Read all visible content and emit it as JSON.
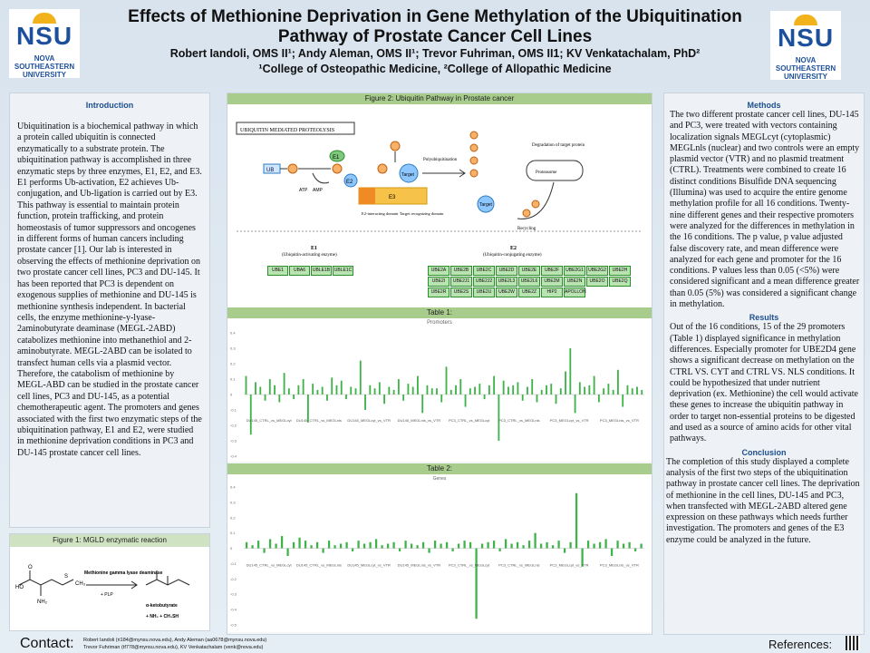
{
  "header": {
    "title": "Effects of Methionine Deprivation in Gene Methylation of the Ubiquitination Pathway of Prostate Cancer Cell Lines",
    "authors": "Robert Iandoli, OMS II¹; Andy Aleman, OMS II¹; Trevor Fuhriman, OMS II1; KV Venkatachalam, PhD²",
    "affiliations": "¹College of Osteopathic Medicine, ²College of Allopathic Medicine",
    "logo_text": "NSU",
    "logo_subtext": "NOVA SOUTHEASTERN UNIVERSITY"
  },
  "intro": {
    "heading": "Introduction",
    "text": "Ubiquitination is a biochemical pathway in which a protein called ubiquitin is connected enzymatically to a substrate protein. The ubiquitination pathway is accomplished in three enzymatic steps by three enzymes, E1, E2, and E3. E1 performs Ub-activation, E2 achieves Ub-conjugation, and Ub-ligation is carried out by E3. This pathway is essential to maintain protein function, protein trafficking, and protein homeostasis of tumor suppressors and oncogenes in different forms of human cancers including prostate cancer [1]. Our lab is interested in observing the effects of methionine deprivation on two prostate cancer cell lines, PC3 and DU-145. It has been reported that PC3 is dependent on exogenous supplies of methionine and DU-145 is methionine synthesis independent. In bacterial cells, the enzyme methionine-y-lyase-2aminobutyrate deaminase (MEGL-2ABD) catabolizes methionine into methanethiol and 2-aminobutyrate. MEGL-2ABD can be isolated to transfect human cells via a plasmid vector. Therefore, the catabolism of methionine by MEGL-ABD can be studied in the prostate cancer cell lines, PC3 and DU-145, as a potential chemotherapeutic agent. The promoters and genes associated with the first two enzymatic steps of the ubiquitination pathway, E1 and E2, were studied in methionine deprivation conditions in PC3 and DU-145 prostate cancer cell lines."
  },
  "figure1": {
    "caption": "Figure 1: MGLD enzymatic reaction",
    "enzyme_label": "Methionine gamma lyase deaminase",
    "cofactor": "+ PLP",
    "product1": "α-ketobutyrate",
    "product2": "+ NH₃ + CH₃SH"
  },
  "figure2": {
    "caption": "Figure 2: Ubiquitin Pathway in Prostate cancer",
    "diagram_title": "UBIQUITIN MEDIATED PROTEOLYSIS",
    "labels": {
      "ub": "UB",
      "ub_small": "Ub",
      "e1": "E1",
      "e2": "E2",
      "e3": "E3",
      "atp": "ATP",
      "amp": "AMP",
      "target": "Target",
      "poly": "Polyubiquitination",
      "degradation": "Degradation of target protein",
      "proteasome": "Proteasome",
      "recycling": "Recycling",
      "e2_domain": "E2-interacting domain",
      "target_domain": "Target recognizing domain"
    },
    "e1_title": "E1",
    "e1_sub": "(Ubiquitin-activating enzyme)",
    "e2_title": "E2",
    "e2_sub": "(Ubiquitin-conjugating enzyme)",
    "e1_genes": [
      "UBE1",
      "UBA6",
      "UBLE1B",
      "UBLE1C"
    ],
    "e2_genes": [
      "UBE2A",
      "UBE2B",
      "UBE2C",
      "UBE2D",
      "UBE2E",
      "UBE2F",
      "UBE2G1",
      "UBE2G2",
      "UBE2H",
      "UBE2I",
      "UBE2J1",
      "UBE2J2",
      "UBE2L3",
      "UBE2L6",
      "UBE2M",
      "UBE2N",
      "UBE2O",
      "UBE2Q",
      "UBE2R",
      "UBE2S",
      "UBE2U",
      "UBE2W",
      "UBE2Z",
      "HIP2",
      "APOLLON"
    ]
  },
  "table1": {
    "caption": "Table 1:",
    "chart_title": "Promoters"
  },
  "table2": {
    "caption": "Table 2:",
    "chart_title": "Genes"
  },
  "chart_data": [
    {
      "type": "bar",
      "title": "Promoters",
      "ylim": [
        -0.4,
        0.4
      ],
      "ytick_labels": [
        "0.4",
        "0.3",
        "0.2",
        "0.1",
        "0",
        "-0.1",
        "-0.2",
        "-0.3",
        "-0.4"
      ],
      "groups": [
        "DU145_CTRL_vs_MEGLcyt",
        "DU145_CTRL_vs_MEGLnls",
        "DU145_MEGLcyt_vs_VTR",
        "DU145_MEGLnls_vs_VTR",
        "PC3_CTRL_vs_MEGLcyt",
        "PC3_CTRL_vs_MEGLnls",
        "PC3_MEGLcyt_vs_VTR",
        "PC3_MEGLnls_vs_VTR"
      ],
      "values": [
        0.12,
        -0.26,
        0.08,
        0.05,
        -0.04,
        0.1,
        0.06,
        -0.05,
        0.14,
        0.04,
        -0.03,
        0.06,
        0.1,
        -0.18,
        0.07,
        0.03,
        0.05,
        -0.04,
        0.11,
        0.06,
        0.09,
        -0.03,
        0.05,
        0.04,
        0.22,
        -0.1,
        0.06,
        0.04,
        0.08,
        -0.06,
        0.05,
        0.03,
        0.1,
        -0.04,
        0.07,
        0.05,
        0.12,
        -0.12,
        0.06,
        0.04,
        0.04,
        -0.05,
        0.18,
        0.03,
        0.06,
        0.1,
        -0.08,
        0.04,
        0.05,
        0.07,
        -0.03,
        0.06,
        0.12,
        -0.3,
        0.09,
        0.05,
        0.06,
        0.08,
        -0.04,
        0.05,
        0.1,
        -0.05,
        0.03,
        0.06,
        0.07,
        -0.06,
        0.04,
        0.15,
        0.3,
        -0.12,
        0.08,
        0.05,
        0.06,
        0.12,
        -0.05,
        0.04,
        0.07,
        0.03,
        0.16,
        -0.08,
        0.06,
        0.04,
        0.05,
        0.03
      ]
    },
    {
      "type": "bar",
      "title": "Genes",
      "ylim": [
        -0.5,
        0.4
      ],
      "ytick_labels": [
        "0.4",
        "0.3",
        "0.2",
        "0.1",
        "0",
        "-0.1",
        "-0.2",
        "-0.3",
        "-0.4",
        "-0.5"
      ],
      "groups": [
        "DU145_CTRL_vs_MEGLcyt",
        "DU145_CTRL_vs_MEGLnls",
        "DU145_MEGLcyt_vs_VTR",
        "DU145_MEGLnls_vs_VTR",
        "PC3_CTRL_vs_MEGLcyt",
        "PC3_CTRL_vs_MEGLnls",
        "PC3_MEGLcyt_vs_VTR",
        "PC3_MEGLnls_vs_VTR"
      ],
      "values": [
        0.04,
        0.02,
        0.05,
        -0.03,
        0.06,
        0.03,
        0.08,
        -0.05,
        0.04,
        0.07,
        0.05,
        0.02,
        0.04,
        -0.03,
        0.05,
        0.02,
        0.03,
        0.04,
        -0.02,
        0.05,
        0.03,
        0.04,
        0.06,
        0.02,
        0.03,
        0.04,
        -0.02,
        0.05,
        0.03,
        0.02,
        0.04,
        -0.03,
        0.05,
        0.03,
        0.04,
        -0.02,
        0.03,
        0.05,
        0.04,
        -0.46,
        0.03,
        0.04,
        0.05,
        -0.02,
        0.06,
        0.03,
        0.04,
        0.02,
        0.05,
        0.1,
        0.03,
        0.04,
        0.02,
        0.05,
        -0.03,
        0.04,
        0.36,
        -0.12,
        0.05,
        0.03,
        0.04,
        0.06,
        -0.05,
        0.05,
        0.03,
        0.04,
        -0.02,
        0.03
      ]
    }
  ],
  "methods": {
    "heading": "Methods",
    "text": "The two different prostate cancer cell lines, DU-145 and PC3, were treated with vectors containing localization signals MEGLcyt (cytoplasmic) MEGLnls (nuclear) and two controls were an empty plasmid vector (VTR) and no plasmid treatment (CTRL). Treatments were combined to create 16 distinct conditions Bisulfide DNA sequencing (Illumina) was used to acquire the entire genome methylation profile for all 16 conditions. Twenty-nine different genes and their respective promoters were analyzed for the differences in methylation in the 16 conditions. The p value, p value adjusted false discovery rate, and mean difference were analyzed for each gene and promoter for the 16 conditions. P values less than 0.05 (<5%) were considered significant and a mean difference greater than 0.05 (5%) was considered a significant change in methylation."
  },
  "results": {
    "heading": "Results",
    "text": "Out of the 16 conditions, 15 of the 29 promoters (Table 1) displayed significance in methylation differences. Especially promoter for UBE2D4 gene shows a significant decrease on methylation on the CTRL VS. CYT and CTRL VS. NLS conditions. It could be hypothesized that under nutrient deprivation (ex. Methionine) the cell would activate these genes to increase the ubiquitin pathway in order to target non-essential proteins to be digested and used as a source of amino acids for other vital pathways."
  },
  "conclusion": {
    "heading": "Conclusion",
    "text": "The completion of this study displayed a complete analysis of the first two steps of the ubiquitination pathway in prostate cancer cell lines. The deprivation of methionine in the cell lines, DU-145 and PC3, when transfected with MEGL-2ABD altered gene expression on these pathways which needs further investigation. The promoters and genes of the E3 enzyme could be analyzed in the future."
  },
  "footer": {
    "contact_label": "Contact:",
    "line1": "Robert Iandoli (ri184@mynsu.nova.edu), Andy Aleman (aa0678@mynsu.nova.edu)",
    "line2": "Trevor Fuhriman (tf778@mynsu.nova.edu), KV Venkatachalam (venk@nova.edu)",
    "references_label": "References:"
  },
  "colors": {
    "bar": "#3fb34a",
    "caption_bg": "#a8cc8c",
    "heading": "#1c4f8e",
    "brand": "#1c4f9c"
  }
}
